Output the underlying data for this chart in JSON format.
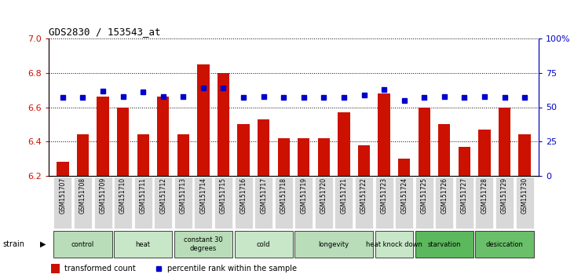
{
  "title": "GDS2830 / 153543_at",
  "samples": [
    "GSM151707",
    "GSM151708",
    "GSM151709",
    "GSM151710",
    "GSM151711",
    "GSM151712",
    "GSM151713",
    "GSM151714",
    "GSM151715",
    "GSM151716",
    "GSM151717",
    "GSM151718",
    "GSM151719",
    "GSM151720",
    "GSM151721",
    "GSM151722",
    "GSM151723",
    "GSM151724",
    "GSM151725",
    "GSM151726",
    "GSM151727",
    "GSM151728",
    "GSM151729",
    "GSM151730"
  ],
  "bar_values": [
    6.28,
    6.44,
    6.66,
    6.6,
    6.44,
    6.66,
    6.44,
    6.85,
    6.8,
    6.5,
    6.53,
    6.42,
    6.42,
    6.42,
    6.57,
    6.38,
    6.68,
    6.3,
    6.6,
    6.5,
    6.37,
    6.47,
    6.6,
    6.44
  ],
  "percentile_values": [
    57,
    57,
    62,
    58,
    61,
    58,
    58,
    64,
    64,
    57,
    58,
    57,
    57,
    57,
    57,
    59,
    63,
    55,
    57,
    58,
    57,
    58,
    57,
    57
  ],
  "groups": [
    {
      "label": "control",
      "start": 0,
      "end": 3
    },
    {
      "label": "heat",
      "start": 3,
      "end": 6
    },
    {
      "label": "constant 30\ndegrees",
      "start": 6,
      "end": 9
    },
    {
      "label": "cold",
      "start": 9,
      "end": 12
    },
    {
      "label": "longevity",
      "start": 12,
      "end": 16
    },
    {
      "label": "heat knock down",
      "start": 16,
      "end": 18
    },
    {
      "label": "starvation",
      "start": 18,
      "end": 21
    },
    {
      "label": "desiccation",
      "start": 21,
      "end": 24
    }
  ],
  "group_colors": [
    "#b8ddb8",
    "#c8e6c8",
    "#b8ddb8",
    "#c8e6c8",
    "#b8ddb8",
    "#c8e6c8",
    "#5cb85c",
    "#6abf6a"
  ],
  "ylim_left": [
    6.2,
    7.0
  ],
  "ylim_right": [
    0,
    100
  ],
  "yticks_left": [
    6.2,
    6.4,
    6.6,
    6.8,
    7.0
  ],
  "yticks_right": [
    0,
    25,
    50,
    75,
    100
  ],
  "bar_color": "#cc1100",
  "dot_color": "#0000cc",
  "legend_bar_label": "transformed count",
  "legend_dot_label": "percentile rank within the sample",
  "tick_bg_color": "#d8d8d8"
}
